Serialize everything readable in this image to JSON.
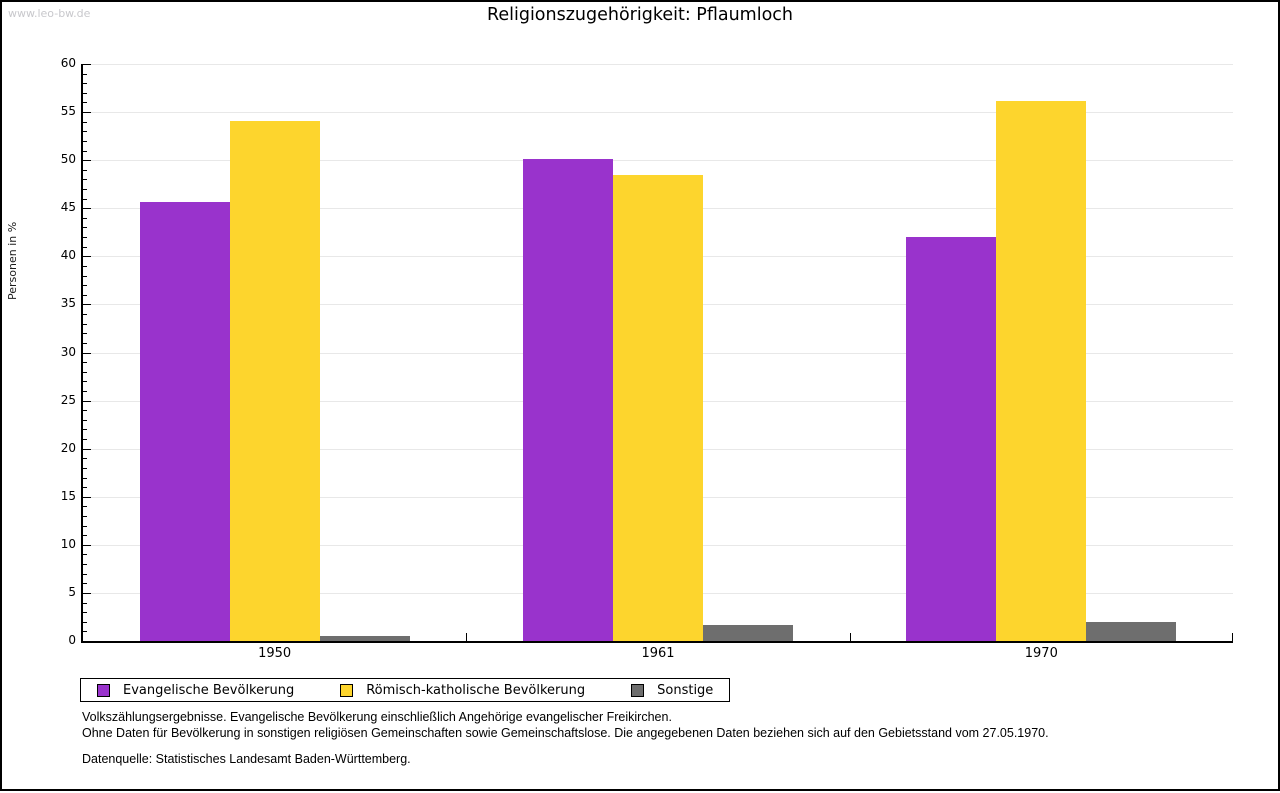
{
  "watermark": "www.leo-bw.de",
  "chart_data": {
    "type": "bar",
    "title": "Religionszugehörigkeit: Pflaumloch",
    "categories": [
      "1950",
      "1961",
      "1970"
    ],
    "series": [
      {
        "name": "Evangelische Bevölkerung",
        "color": "#9933CC",
        "values": [
          45.6,
          50.1,
          42.0
        ]
      },
      {
        "name": "Römisch-katholische Bevölkerung",
        "color": "#FDD52D",
        "values": [
          54.1,
          48.5,
          56.2
        ]
      },
      {
        "name": "Sonstige",
        "color": "#6E6E6E",
        "values": [
          0.5,
          1.7,
          2.0
        ]
      }
    ],
    "xlabel": "",
    "ylabel": "Personen in %",
    "ylim": [
      0,
      60
    ],
    "ytick_step": 5,
    "yminor_step": 1,
    "grid": true,
    "grid_color": "#e8e8e8",
    "legend_position": "bottom"
  },
  "footnotes": {
    "line1": "Volkszählungsergebnisse. Evangelische Bevölkerung einschließlich Angehörige evangelischer Freikirchen.",
    "line2": "Ohne Daten für Bevölkerung in sonstigen religiösen Gemeinschaften sowie Gemeinschaftslose. Die angegebenen Daten beziehen sich auf den Gebietsstand vom 27.05.1970.",
    "source": "Datenquelle: Statistisches Landesamt Baden-Württemberg."
  }
}
